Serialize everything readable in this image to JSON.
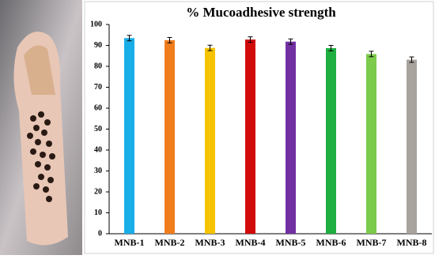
{
  "chart_data": {
    "type": "bar",
    "title": "% Mucoadhesive strength",
    "categories": [
      "MNB-1",
      "MNB-2",
      "MNB-3",
      "MNB-4",
      "MNB-5",
      "MNB-6",
      "MNB-7",
      "MNB-8"
    ],
    "values": [
      93.5,
      92.5,
      88.8,
      92.8,
      91.8,
      88.7,
      85.9,
      83.2
    ],
    "errors": [
      1.3,
      1.3,
      1.3,
      1.3,
      1.3,
      1.3,
      1.3,
      1.3
    ],
    "colors": [
      "#19aee8",
      "#f07d1c",
      "#f5c300",
      "#d10a0a",
      "#7231a3",
      "#1fae40",
      "#7ccb4b",
      "#a9a39e"
    ],
    "ylim": [
      0,
      100
    ],
    "yticks": [
      0,
      10,
      20,
      30,
      40,
      50,
      60,
      70,
      80,
      90,
      100
    ],
    "grid": false
  }
}
